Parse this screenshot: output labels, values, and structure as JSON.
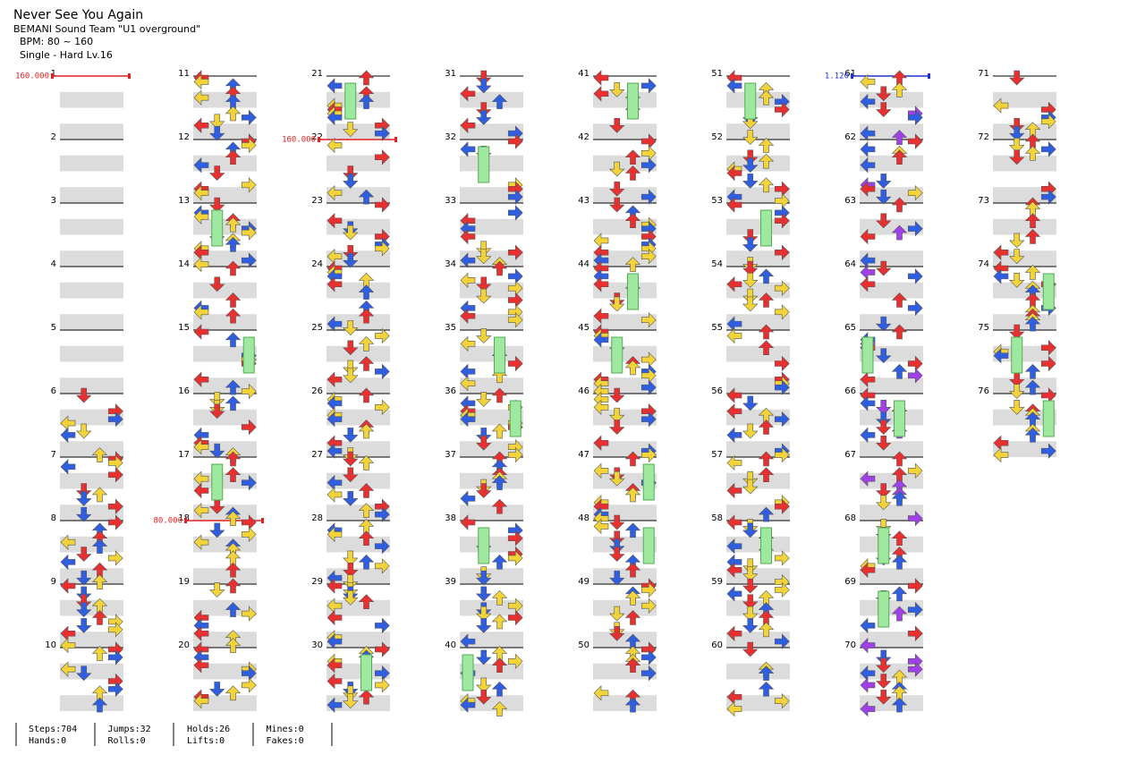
{
  "header": {
    "title": "Never See You Again",
    "artist": "BEMANI Sound Team \"U1 overground\"",
    "bpm": "BPM: 80 ~ 160",
    "difficulty": "Single - Hard  Lv.16"
  },
  "measures": [
    1,
    2,
    3,
    4,
    5,
    6,
    7,
    8,
    9,
    10,
    11,
    12,
    13,
    14,
    15,
    16,
    17,
    18,
    19,
    20,
    21,
    22,
    23,
    24,
    25,
    26,
    27,
    28,
    29,
    30,
    31,
    32,
    33,
    34,
    35,
    36,
    37,
    38,
    39,
    40,
    41,
    42,
    43,
    44,
    45,
    46,
    47,
    48,
    49,
    50,
    51,
    52,
    53,
    54,
    55,
    56,
    57,
    58,
    59,
    60,
    61,
    62,
    63,
    64,
    65,
    66,
    67,
    68,
    69,
    70,
    71,
    72,
    73,
    74,
    75,
    76
  ],
  "bpm_markers": [
    {
      "label": "160.000",
      "measure": 1,
      "color": "#e02020"
    },
    {
      "label": "80.000",
      "measure": 18,
      "color": "#e02020"
    },
    {
      "label": "160.000",
      "measure": 22,
      "color": "#e02020"
    },
    {
      "label": "1.120",
      "measure": 61,
      "color": "#2030d0"
    }
  ],
  "stats": [
    [
      "Steps:704",
      "Hands:0"
    ],
    [
      "Jumps:32",
      "Rolls:0"
    ],
    [
      "Holds:26",
      "Lifts:0"
    ],
    [
      "Mines:0",
      "Fakes:0"
    ]
  ]
}
